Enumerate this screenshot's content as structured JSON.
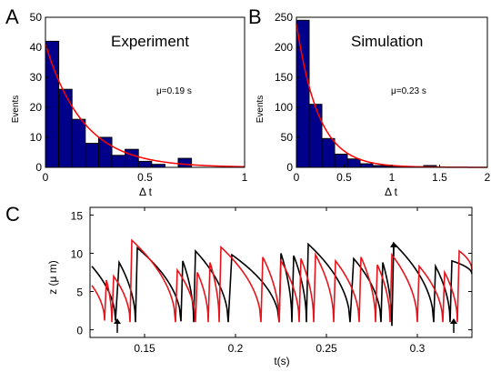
{
  "figure": {
    "panel_letters": [
      "A",
      "B",
      "C"
    ]
  },
  "colors": {
    "bar_fill": "#00008b",
    "fit_line": "#ff0000",
    "trace_black": "#000000",
    "trace_red": "#e8141c"
  },
  "chart_data": [
    {
      "type": "bar",
      "panel": "A",
      "title": "Experiment",
      "annotation": "μ=0.19 s",
      "xlabel": "Δ t",
      "ylabel": "Events",
      "xlim": [
        0,
        1
      ],
      "ylim": [
        0,
        50
      ],
      "xticks": [
        "0",
        "0.5",
        "1"
      ],
      "yticks": [
        "0",
        "10",
        "20",
        "30",
        "40",
        "50"
      ],
      "bin_width": 0.0667,
      "bins": [
        0.0,
        0.0667,
        0.1333,
        0.2,
        0.2667,
        0.3333,
        0.4,
        0.4667,
        0.5333,
        0.6,
        0.6667,
        0.7333,
        0.8,
        0.8667,
        0.9333
      ],
      "values": [
        42,
        26,
        16,
        8,
        10,
        4,
        6,
        2,
        1,
        0,
        3,
        0,
        0,
        0,
        0
      ],
      "fit": {
        "type": "exponential",
        "amplitude": 41,
        "tau": 0.19
      }
    },
    {
      "type": "bar",
      "panel": "B",
      "title": "Simulation",
      "annotation": "μ=0.23 s",
      "xlabel": "Δ t",
      "ylabel": "Events",
      "xlim": [
        0,
        2
      ],
      "ylim": [
        0,
        250
      ],
      "xticks": [
        "0",
        "0.5",
        "1",
        "1.5",
        "2"
      ],
      "yticks": [
        "0",
        "50",
        "100",
        "150",
        "200",
        "250"
      ],
      "bin_width": 0.1333,
      "bins": [
        0.0,
        0.1333,
        0.2667,
        0.4,
        0.5333,
        0.6667,
        0.8,
        0.9333,
        1.0667,
        1.2,
        1.3333,
        1.4667,
        1.6,
        1.7333,
        1.8667
      ],
      "values": [
        245,
        105,
        48,
        22,
        14,
        6,
        3,
        2,
        1,
        1,
        3,
        0,
        0,
        0,
        0
      ],
      "fit": {
        "type": "exponential",
        "amplitude": 240,
        "tau": 0.23
      }
    },
    {
      "type": "line",
      "panel": "C",
      "xlabel": "t(s)",
      "ylabel": "z (μ m)",
      "xlim": [
        0.12,
        0.33
      ],
      "ylim": [
        -1,
        16
      ],
      "xticks": [
        "0.15",
        "0.2",
        "0.25",
        "0.3"
      ],
      "yticks": [
        "0",
        "5",
        "10",
        "15"
      ],
      "series": [
        {
          "color": "black",
          "segments": [
            [
              0.121,
              8.3,
              0.134,
              1.2
            ],
            [
              0.136,
              8.8,
              0.145,
              1.0
            ],
            [
              0.146,
              10.7,
              0.17,
              1.1
            ],
            [
              0.171,
              9.0,
              0.177,
              1.0
            ],
            [
              0.178,
              10.3,
              0.196,
              1.0
            ],
            [
              0.198,
              9.8,
              0.224,
              1.0
            ],
            [
              0.225,
              10.0,
              0.231,
              1.0
            ],
            [
              0.232,
              9.7,
              0.239,
              1.0
            ],
            [
              0.24,
              11.2,
              0.263,
              1.0
            ],
            [
              0.265,
              9.3,
              0.28,
              1.0
            ],
            [
              0.281,
              8.8,
              0.286,
              0.5
            ],
            [
              0.287,
              11.3,
              0.309,
              1.0
            ],
            [
              0.31,
              8.3,
              0.318,
              1.0
            ],
            [
              0.319,
              9.0,
              0.33,
              7.3
            ]
          ]
        },
        {
          "color": "red",
          "segments": [
            [
              0.121,
              5.8,
              0.128,
              1.2
            ],
            [
              0.129,
              6.5,
              0.132,
              1.0
            ],
            [
              0.133,
              7.0,
              0.142,
              1.0
            ],
            [
              0.143,
              11.7,
              0.167,
              1.0
            ],
            [
              0.168,
              7.8,
              0.178,
              1.0
            ],
            [
              0.179,
              7.5,
              0.185,
              1.0
            ],
            [
              0.186,
              8.8,
              0.191,
              1.0
            ],
            [
              0.192,
              10.8,
              0.214,
              1.0
            ],
            [
              0.215,
              9.5,
              0.224,
              1.0
            ],
            [
              0.225,
              9.0,
              0.235,
              1.0
            ],
            [
              0.236,
              9.3,
              0.243,
              1.0
            ],
            [
              0.244,
              9.8,
              0.254,
              1.0
            ],
            [
              0.255,
              9.0,
              0.268,
              1.0
            ],
            [
              0.269,
              9.5,
              0.277,
              1.0
            ],
            [
              0.278,
              8.5,
              0.285,
              1.0
            ],
            [
              0.286,
              9.8,
              0.3,
              1.0
            ],
            [
              0.301,
              8.3,
              0.314,
              1.0
            ],
            [
              0.315,
              7.5,
              0.322,
              1.0
            ],
            [
              0.323,
              10.3,
              0.33,
              7.8
            ]
          ]
        }
      ],
      "arrows": [
        0.135,
        0.287,
        0.32
      ],
      "arrow_directions": [
        "up",
        "up",
        "up"
      ],
      "arrow_tips": [
        1.5,
        11.5,
        1.5
      ]
    }
  ]
}
